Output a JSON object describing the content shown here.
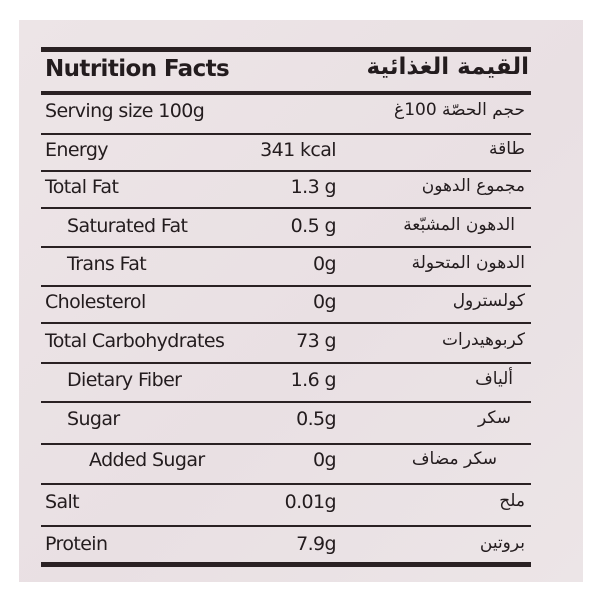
{
  "title": {
    "en": "Nutrition Facts",
    "ar": "القيمة الغذائية"
  },
  "serving": {
    "en": "Serving size 100g",
    "ar": "حجم الحصّة 100غ"
  },
  "rows": [
    {
      "en": "Energy",
      "value": "341 kcal",
      "ar": "طاقة",
      "indent": 0
    },
    {
      "en": "Total Fat",
      "value": "1.3 g",
      "ar": "مجموع الدهون",
      "indent": 0
    },
    {
      "en": "Saturated Fat",
      "value": "0.5 g",
      "ar": "الدهون المشبّعة",
      "indent": 1
    },
    {
      "en": "Trans Fat",
      "value": "0g",
      "ar": "الدهون المتحولة",
      "indent": 1
    },
    {
      "en": "Cholesterol",
      "value": "0g",
      "ar": "كولسترول",
      "indent": 0
    },
    {
      "en": "Total Carbohydrates",
      "value": "73 g",
      "ar": "كربوهيدرات",
      "indent": 0
    },
    {
      "en": "Dietary Fiber",
      "value": "1.6 g",
      "ar": "ألياف",
      "indent": 1
    },
    {
      "en": "Sugar",
      "value": "0.5g",
      "ar": "سكر",
      "indent": 1
    },
    {
      "en": "Added Sugar",
      "value": "0g",
      "ar": "سكر مضاف",
      "indent": 2
    },
    {
      "en": "Salt",
      "value": "0.01g",
      "ar": "ملح",
      "indent": 0
    },
    {
      "en": "Protein",
      "value": "7.9g",
      "ar": "بروتين",
      "indent": 0
    }
  ]
}
